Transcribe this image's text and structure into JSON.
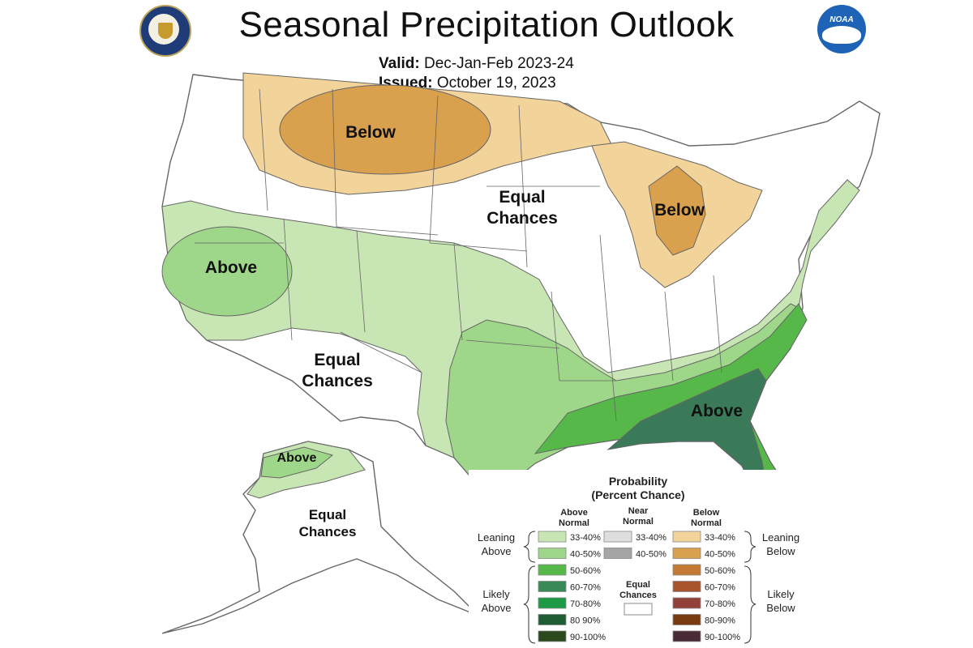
{
  "header": {
    "title": "Seasonal Precipitation Outlook",
    "valid_label": "Valid:",
    "valid_value": "Dec-Jan-Feb 2023-24",
    "issued_label": "Issued:",
    "issued_value": "October 19, 2023",
    "logo_text": "NOAA"
  },
  "map_labels": {
    "below_north": "Below",
    "below_great_lakes": "Below",
    "equal_central_1": "Equal",
    "equal_central_2": "Chances",
    "above_west": "Above",
    "equal_southwest_1": "Equal",
    "equal_southwest_2": "Chances",
    "above_southeast": "Above",
    "above_alaska": "Above",
    "equal_alaska_1": "Equal",
    "equal_alaska_2": "Chances"
  },
  "legend": {
    "title_1": "Probability",
    "title_2": "(Percent Chance)",
    "col_above_1": "Above",
    "col_above_2": "Normal",
    "col_near_1": "Near",
    "col_near_2": "Normal",
    "col_below_1": "Below",
    "col_below_2": "Normal",
    "leaning_above_1": "Leaning",
    "leaning_above_2": "Above",
    "likely_above_1": "Likely",
    "likely_above_2": "Above",
    "leaning_below_1": "Leaning",
    "leaning_below_2": "Below",
    "likely_below_1": "Likely",
    "likely_below_2": "Below",
    "equal_1": "Equal",
    "equal_2": "Chances",
    "above_rows": [
      {
        "label": "33-40%",
        "color": "#c8e6b4"
      },
      {
        "label": "40-50%",
        "color": "#9fd78a"
      },
      {
        "label": "50-60%",
        "color": "#57b84a"
      },
      {
        "label": "60-70%",
        "color": "#3a8a58"
      },
      {
        "label": "70-80%",
        "color": "#1e9a45"
      },
      {
        "label": "80 90%",
        "color": "#1f5e34"
      },
      {
        "label": "90-100%",
        "color": "#2a4a1e"
      }
    ],
    "near_rows": [
      {
        "label": "33-40%",
        "color": "#dedede"
      },
      {
        "label": "40-50%",
        "color": "#a5a5a5"
      }
    ],
    "below_rows": [
      {
        "label": "33-40%",
        "color": "#f2d39a"
      },
      {
        "label": "40-50%",
        "color": "#d9a04e"
      },
      {
        "label": "50-60%",
        "color": "#c57a34"
      },
      {
        "label": "60-70%",
        "color": "#a8552e"
      },
      {
        "label": "70-80%",
        "color": "#94403a"
      },
      {
        "label": "80-90%",
        "color": "#7a3b12"
      },
      {
        "label": "90-100%",
        "color": "#4a2a36"
      }
    ]
  },
  "colors": {
    "leaning_above": "#c8e6b4",
    "above_40_50": "#9fd78a",
    "above_50_60": "#57b84a",
    "above_60_70": "#3a7a58",
    "leaning_below": "#f2d39a",
    "below_40_50": "#d9a04e",
    "equal": "#ffffff",
    "border": "#555555"
  }
}
